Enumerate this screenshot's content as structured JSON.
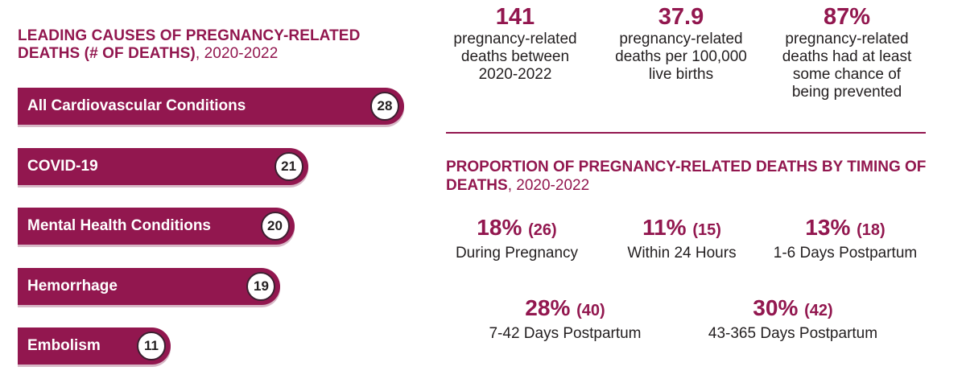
{
  "left": {
    "title": "LEADING CAUSES OF PREGNANCY-RELATED DEATHS (# OF DEATHS)",
    "title_years": ", 2020-2022"
  },
  "chart_data": {
    "type": "bar",
    "orientation": "horizontal",
    "title": "LEADING CAUSES OF PREGNANCY-RELATED DEATHS (# OF DEATHS), 2020-2022",
    "categories": [
      "All Cardiovascular Conditions",
      "COVID-19",
      "Mental Health Conditions",
      "Hemorrhage",
      "Embolism"
    ],
    "values": [
      28,
      21,
      20,
      19,
      11
    ],
    "xlim": [
      0,
      28
    ],
    "grid": false,
    "bar_color": "#92174f"
  },
  "stats": [
    {
      "value": "141",
      "text": "pregnancy-related deaths between 2020-2022"
    },
    {
      "value": "37.9",
      "text": "pregnancy-related deaths per 100,000 live births"
    },
    {
      "value": "87%",
      "text": "pregnancy-related deaths had at least some chance of being prevented"
    }
  ],
  "right": {
    "title": "PROPORTION OF PREGNANCY-RELATED DEATHS BY TIMING OF DEATHS",
    "title_years": ", 2020-2022"
  },
  "timing": [
    {
      "percent": "18%",
      "count": "(26)",
      "label": "During Pregnancy"
    },
    {
      "percent": "11%",
      "count": "(15)",
      "label": "Within 24 Hours"
    },
    {
      "percent": "13%",
      "count": "(18)",
      "label": "1-6 Days Postpartum"
    },
    {
      "percent": "28%",
      "count": "(40)",
      "label": "7-42 Days Postpartum"
    },
    {
      "percent": "30%",
      "count": "(42)",
      "label": "43-365 Days Postpartum"
    }
  ],
  "colors": {
    "accent": "#92174f",
    "text": "#231f20"
  }
}
